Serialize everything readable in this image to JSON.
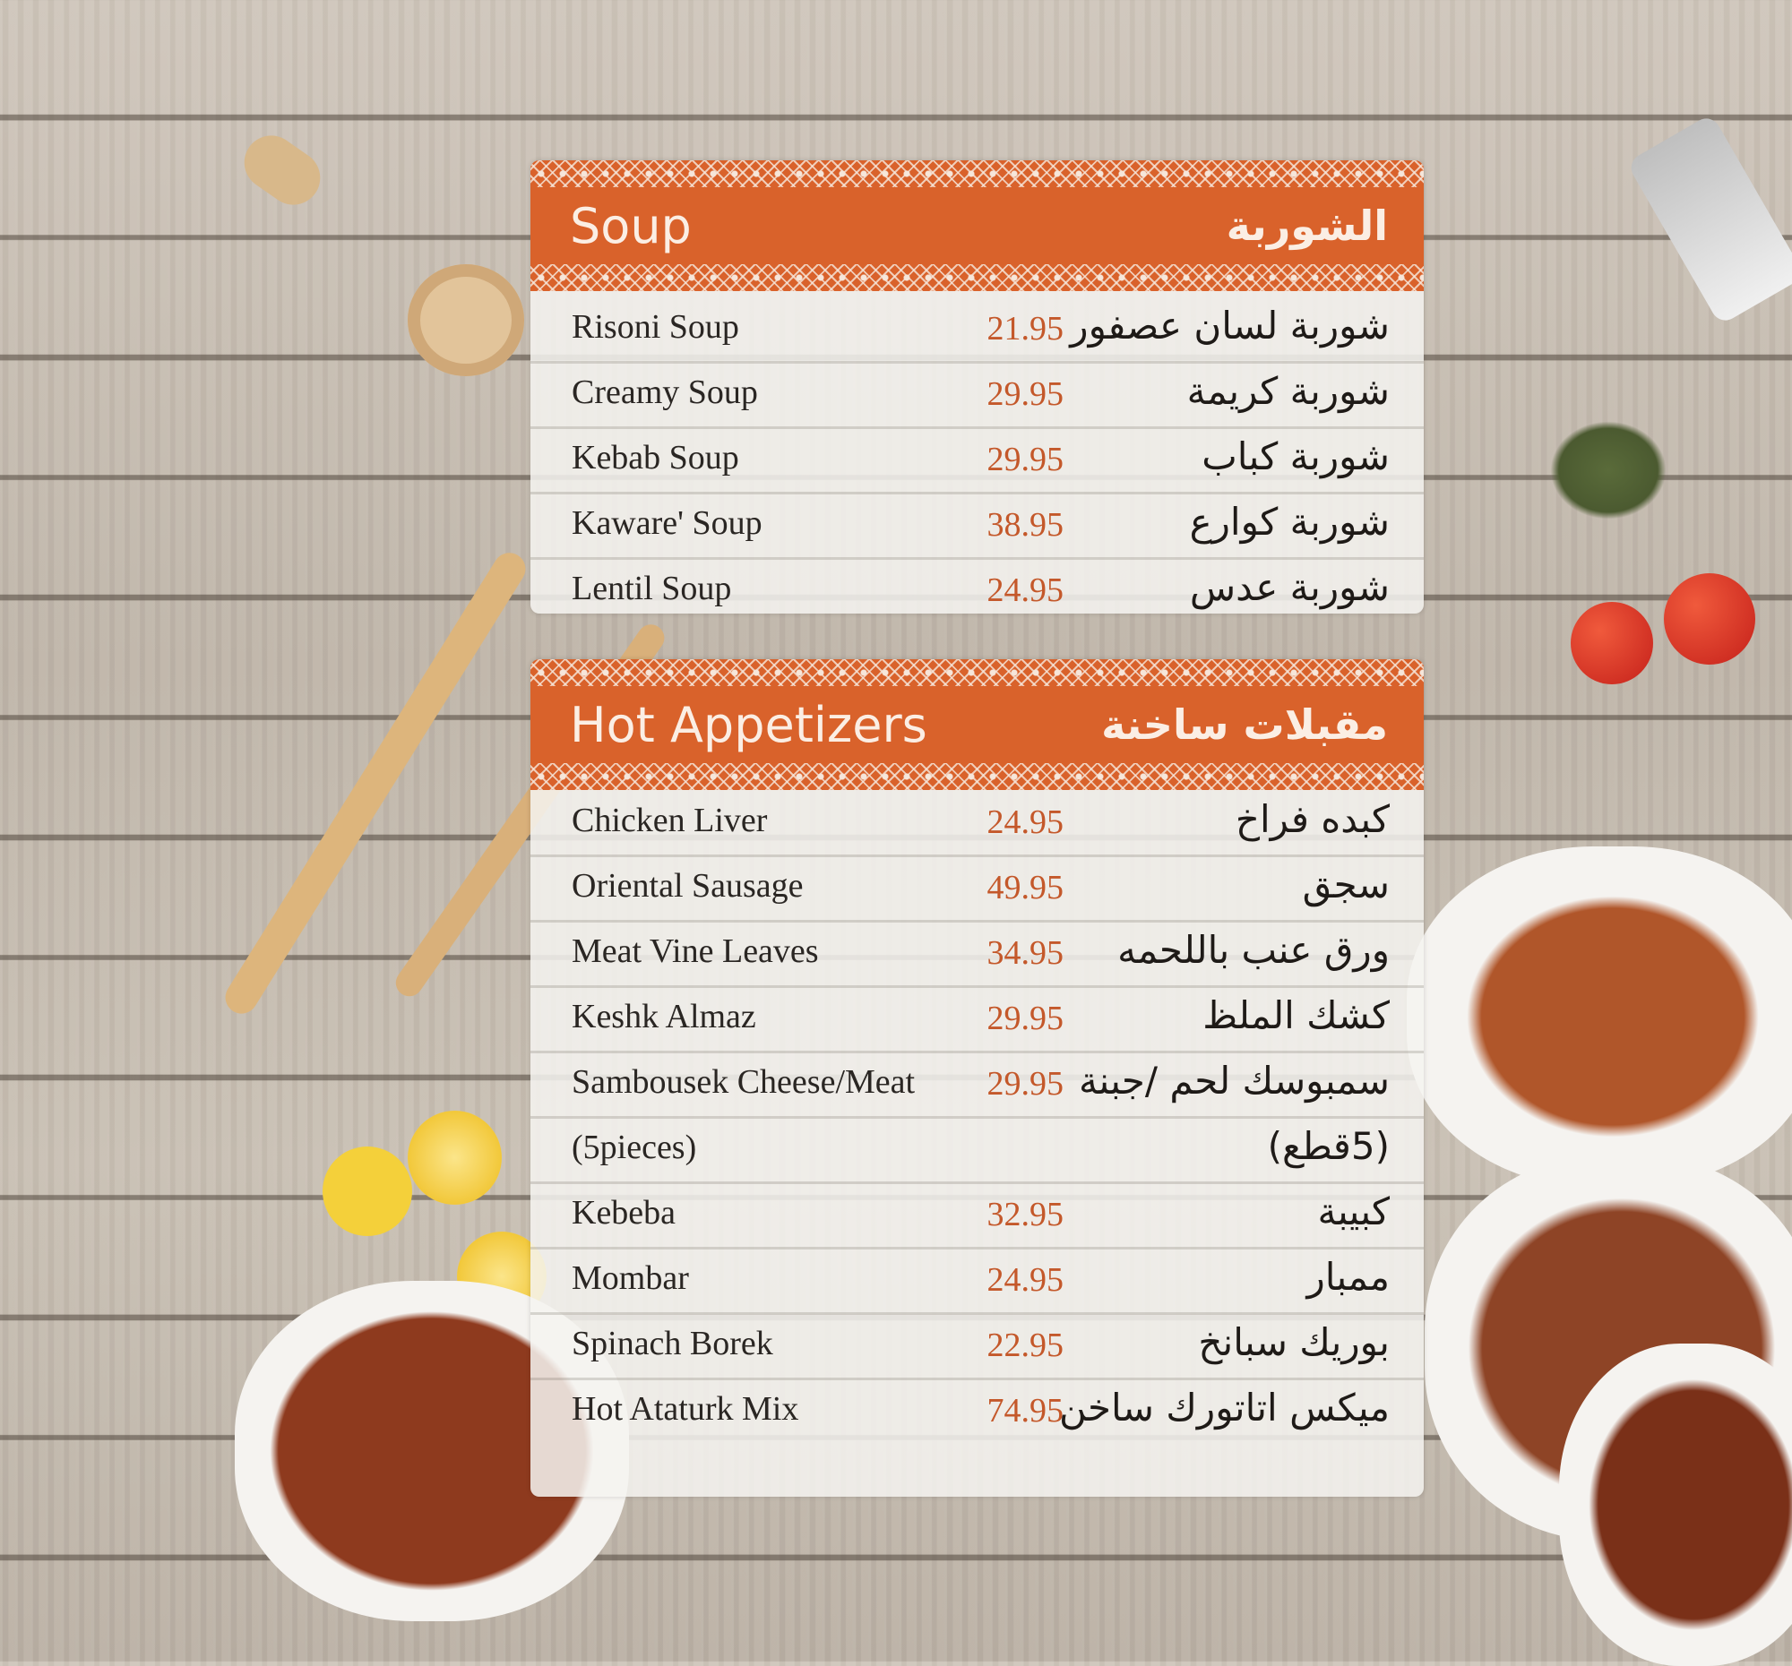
{
  "sections": [
    {
      "title_en": "Soup",
      "title_ar": "الشوربة",
      "items": [
        {
          "en": "Risoni Soup",
          "price": "21.95",
          "ar": "شوربة لسان عصفور"
        },
        {
          "en": "Creamy Soup",
          "price": "29.95",
          "ar": "شوربة كريمة"
        },
        {
          "en": "Kebab Soup",
          "price": "29.95",
          "ar": "شوربة كباب"
        },
        {
          "en": "Kaware' Soup",
          "price": "38.95",
          "ar": "شوربة كوارع"
        },
        {
          "en": "Lentil Soup",
          "price": "24.95",
          "ar": "شوربة عدس"
        }
      ]
    },
    {
      "title_en": "Hot Appetizers",
      "title_ar": "مقبلات ساخنة",
      "items": [
        {
          "en": "Chicken Liver",
          "price": "24.95",
          "ar": "كبده فراخ"
        },
        {
          "en": "Oriental Sausage",
          "price": "49.95",
          "ar": "سجق"
        },
        {
          "en": "Meat Vine Leaves",
          "price": "34.95",
          "ar": "ورق عنب باللحمه"
        },
        {
          "en": "Keshk Almaz",
          "price": "29.95",
          "ar": "كشك الملظ"
        },
        {
          "en": "Sambousek Cheese/Meat",
          "price": "29.95",
          "ar": "سمبوسك لحم /جبنة"
        },
        {
          "en": "(5pieces)",
          "price": "",
          "ar": "(5قطع)"
        },
        {
          "en": "Kebeba",
          "price": "32.95",
          "ar": "كبيبة"
        },
        {
          "en": "Mombar",
          "price": "24.95",
          "ar": "ممبار"
        },
        {
          "en": "Spinach Borek",
          "price": "22.95",
          "ar": "بوريك سبانخ"
        },
        {
          "en": "Hot Ataturk Mix",
          "price": "74.95",
          "ar": "ميكس اتاتورك ساخن"
        }
      ]
    }
  ],
  "colors": {
    "accent": "#d9622b",
    "price": "#c4582a"
  }
}
